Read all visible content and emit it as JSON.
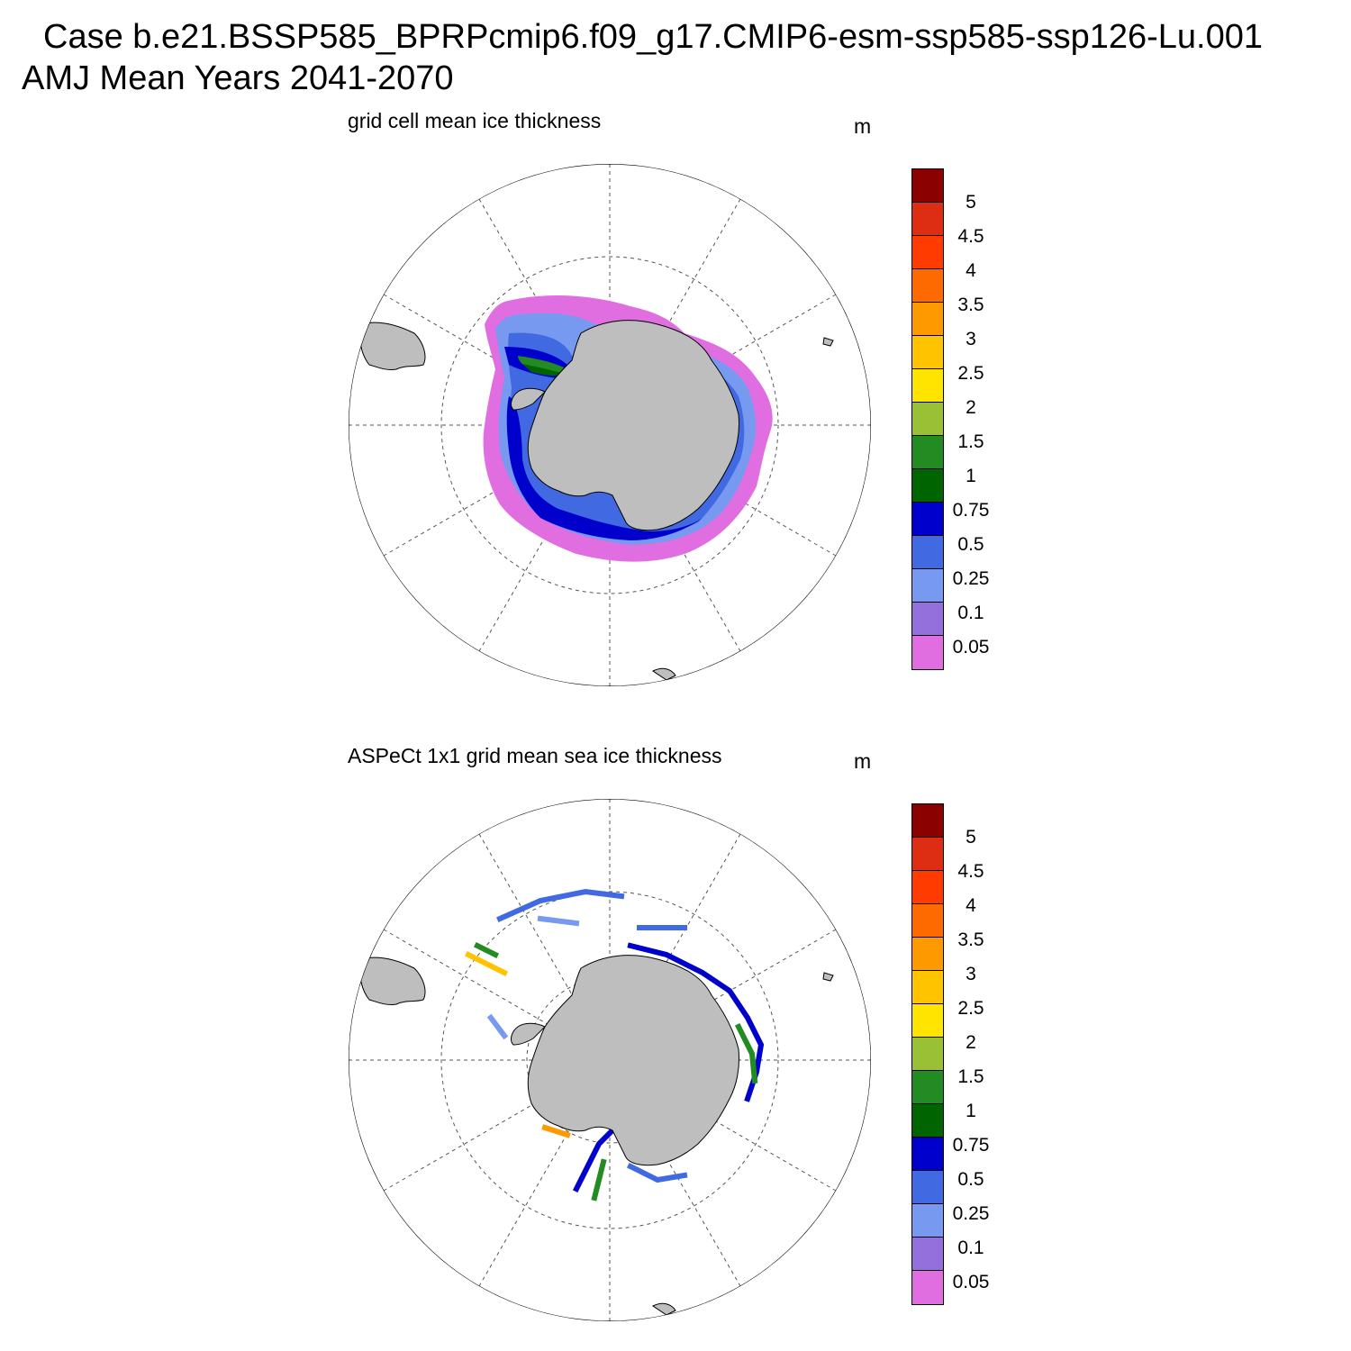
{
  "figure": {
    "case_line": "Case b.e21.BSSP585_BPRPcmip6.f09_g17.CMIP6-esm-ssp585-ssp126-Lu.001",
    "period_line": "AMJ Mean   Years 2041-2070"
  },
  "panels": [
    {
      "title": "grid cell mean ice thickness",
      "units": "m"
    },
    {
      "title": "ASPeCt 1x1 grid mean sea ice thickness",
      "units": "m"
    }
  ],
  "colorbar": {
    "labels": [
      "5",
      "4.5",
      "4",
      "3.5",
      "3",
      "2.5",
      "2",
      "1.5",
      "1",
      "0.75",
      "0.5",
      "0.25",
      "0.1",
      "0.05"
    ],
    "colors": [
      "#8b0000",
      "#dd2d12",
      "#ff3b00",
      "#ff6a00",
      "#ff9900",
      "#ffc300",
      "#ffe400",
      "#9ac035",
      "#228b22",
      "#006400",
      "#0000cd",
      "#4169e1",
      "#7799f0",
      "#9370db",
      "#e16ee0"
    ]
  },
  "map_colors": {
    "land": "#bebebe",
    "grid": "#555555"
  }
}
